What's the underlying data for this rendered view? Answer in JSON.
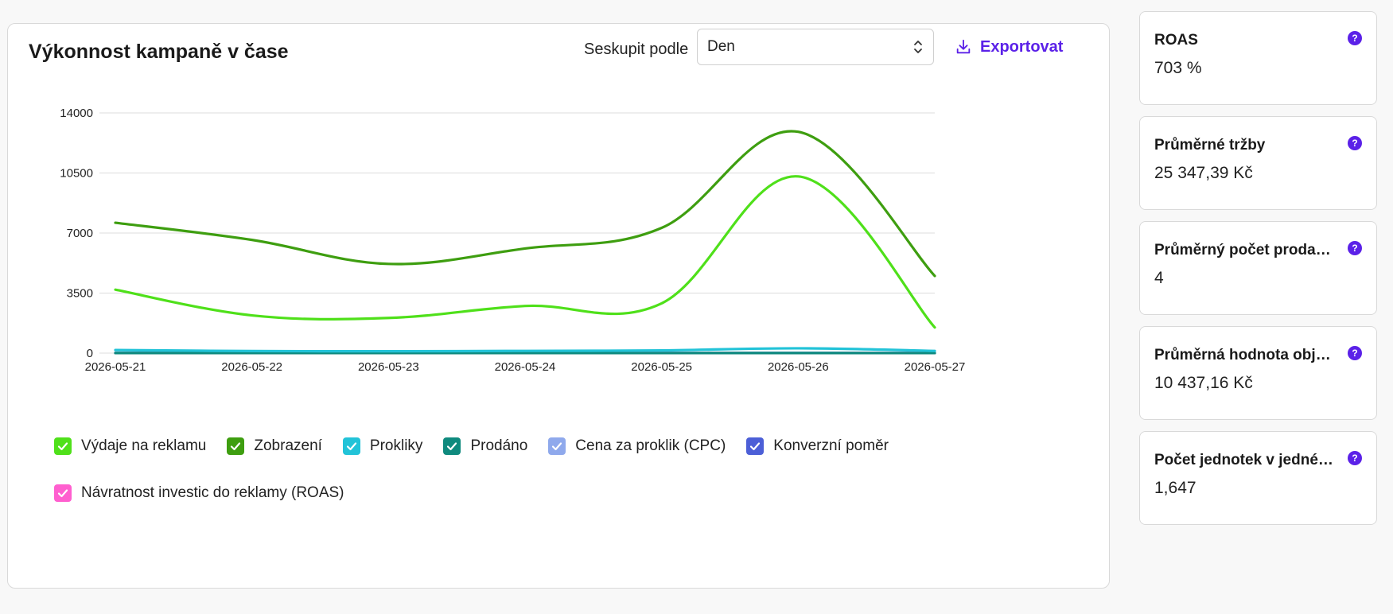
{
  "panel": {
    "title": "Výkonnost kampaně v čase",
    "group_label": "Seskupit podle",
    "group_value": "Den",
    "export_label": "Exportovat"
  },
  "chart_data": {
    "type": "line",
    "x": [
      "2026-05-21",
      "2026-05-22",
      "2026-05-23",
      "2026-05-24",
      "2026-05-25",
      "2026-05-26",
      "2026-05-27"
    ],
    "yticks": [
      0,
      3500,
      7000,
      10500,
      14000
    ],
    "ylim": [
      0,
      14000
    ],
    "grid": true,
    "series": [
      {
        "name": "Výdaje na reklamu",
        "color": "#4fe01a",
        "values": [
          3700,
          2200,
          2050,
          2750,
          2900,
          10300,
          1500
        ],
        "checked": true
      },
      {
        "name": "Zobrazení",
        "color": "#3e9e10",
        "values": [
          7600,
          6600,
          5200,
          6100,
          7300,
          12900,
          4500
        ],
        "checked": true
      },
      {
        "name": "Prokliky",
        "color": "#22c3d8",
        "values": [
          180,
          120,
          110,
          130,
          160,
          280,
          130
        ],
        "checked": true
      },
      {
        "name": "Prodáno",
        "color": "#0f8a7e",
        "values": [
          5,
          4,
          3,
          4,
          4,
          6,
          3
        ],
        "checked": true
      },
      {
        "name": "Cena za proklik (CPC)",
        "color": "#8fa9ec",
        "values": [
          10,
          10,
          10,
          10,
          10,
          10,
          10
        ],
        "checked": true
      },
      {
        "name": "Konverzní poměr",
        "color": "#4c5fd7",
        "values": [
          2,
          2,
          2,
          2,
          2,
          2,
          2
        ],
        "checked": true
      },
      {
        "name": "Návratnost investic do reklamy (ROAS)",
        "color": "#ff5fcf",
        "values": [
          7,
          7,
          7,
          7,
          7,
          7,
          7
        ],
        "checked": true
      }
    ]
  },
  "cards": [
    {
      "title": "ROAS",
      "value": "703 %"
    },
    {
      "title": "Průměrné tržby",
      "value": "25 347,39 Kč"
    },
    {
      "title": "Průměrný počet prodaných jednotek",
      "value": "4"
    },
    {
      "title": "Průměrná hodnota objednávky",
      "value": "10 437,16 Kč"
    },
    {
      "title": "Počet jednotek v jedné objednávce",
      "value": "1,647"
    }
  ],
  "help_glyph": "?",
  "colors": {
    "accent": "#5b21e8"
  }
}
